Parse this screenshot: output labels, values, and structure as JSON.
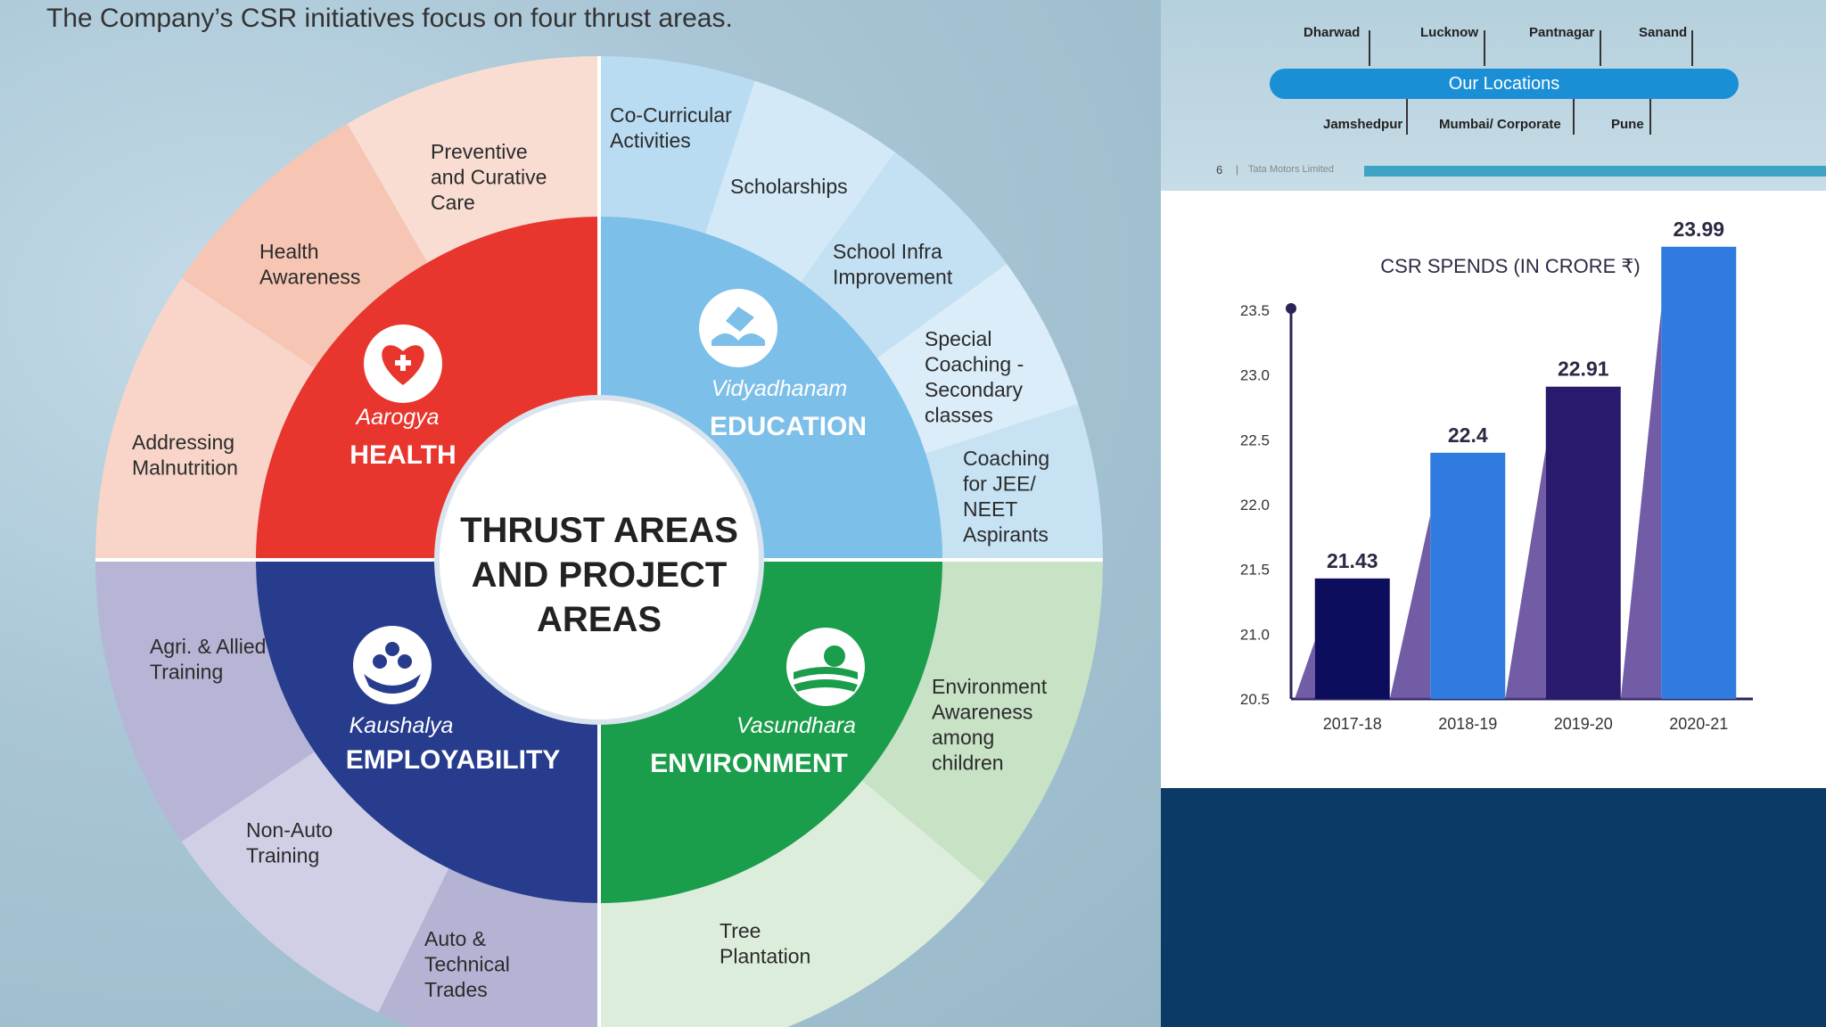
{
  "intro_text": "The Company’s CSR initiatives focus on four thrust areas.",
  "wheel": {
    "center_lines": [
      "THRUST AREAS",
      "AND PROJECT",
      "AREAS"
    ],
    "quadrants": [
      {
        "id": "health",
        "brand": "Aarogya",
        "name": "HEALTH",
        "color": "#e8352d",
        "icon": "heart-hands-icon",
        "projects": [
          [
            "Addressing",
            "Malnutrition"
          ],
          [
            "Health",
            "Awareness"
          ],
          [
            "Preventive",
            "and Curative",
            "Care"
          ]
        ],
        "outer_colors": [
          "#f9ddd3",
          "#f7c5b3",
          "#f8d5c8"
        ]
      },
      {
        "id": "education",
        "brand": "Vidyadhanam",
        "name": "EDUCATION",
        "color": "#7cbfe8",
        "icon": "open-book-icon",
        "projects": [
          [
            "Co-Curricular",
            "Activities"
          ],
          [
            "Scholarships"
          ],
          [
            "School Infra",
            "Improvement"
          ],
          [
            "Special",
            "Coaching -",
            "Secondary",
            "classes"
          ],
          [
            "Coaching",
            "for JEE/",
            "NEET",
            "Aspirants"
          ]
        ],
        "outer_colors": [
          "#b9dcf2",
          "#d3e9f7",
          "#c4e1f4",
          "#daedf8",
          "#c6e2f3"
        ]
      },
      {
        "id": "environment",
        "brand": "Vasundhara",
        "name": "ENVIRONMENT",
        "color": "#1b9e4b",
        "icon": "leaf-water-icon",
        "projects": [
          [
            "Environment",
            "Awareness",
            "among",
            "children"
          ],
          [
            "Tree",
            "Plantation"
          ]
        ],
        "outer_colors": [
          "#c7e2c5",
          "#dceedb"
        ]
      },
      {
        "id": "employability",
        "brand": "Kaushalya",
        "name": "EMPLOYABILITY",
        "color": "#283c8e",
        "icon": "people-hands-icon",
        "projects": [
          [
            "Auto &",
            "Technical",
            "Trades"
          ],
          [
            "Non-Auto",
            "Training"
          ],
          [
            "Agri. & Allied",
            "Training"
          ]
        ],
        "outer_colors": [
          "#b7b5d6",
          "#d1cfe6",
          "#b5b3d4"
        ]
      }
    ]
  },
  "locations": {
    "bar_label": "Our Locations",
    "top": [
      "Dharwad",
      "Lucknow",
      "Pantnagar",
      "Sanand"
    ],
    "bottom": [
      "Jamshedpur",
      "Mumbai/ Corporate",
      "Pune"
    ]
  },
  "footer": {
    "page": "6",
    "separator": "|",
    "company": "Tata Motors Limited"
  },
  "chart_data": {
    "type": "bar",
    "title": "CSR SPENDS (IN CRORE ₹)",
    "categories": [
      "2017-18",
      "2018-19",
      "2019-20",
      "2020-21"
    ],
    "values": [
      21.43,
      22.4,
      22.91,
      23.99
    ],
    "value_labels": [
      "21.43",
      "22.4",
      "22.91",
      "23.99"
    ],
    "ylim": [
      20.5,
      23.5
    ],
    "yticks": [
      "20.5",
      "21.0",
      "21.5",
      "22.0",
      "22.5",
      "23.0",
      "23.5"
    ],
    "bar_colors": [
      "#0d0d5e",
      "#2f7be0",
      "#2a1a6e",
      "#2f7be0"
    ],
    "grid": false
  },
  "colors": {
    "location_bar": "#1a8fd6",
    "footer_bar": "#3fa4c4",
    "bottom_panel": "#0b3a66"
  }
}
